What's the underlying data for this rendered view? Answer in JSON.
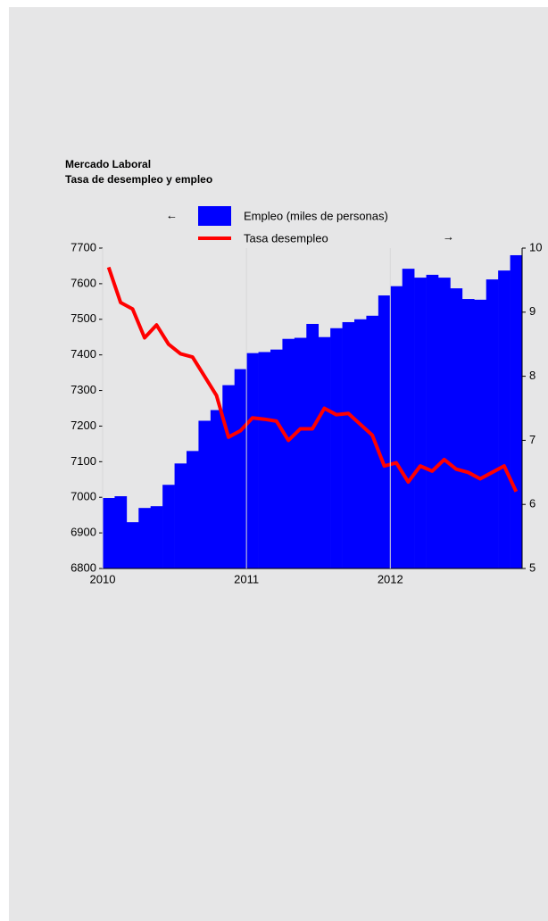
{
  "chart_data": {
    "type": "combo",
    "title": "Mercado Laboral",
    "subtitle": "Tasa de desempleo y empleo",
    "annotations": [
      "←",
      "→"
    ],
    "categories": [
      "2010",
      null,
      null,
      null,
      null,
      null,
      null,
      null,
      null,
      null,
      null,
      null,
      "2011",
      null,
      null,
      null,
      null,
      null,
      null,
      null,
      null,
      null,
      null,
      null,
      "2012",
      null,
      null,
      null,
      null,
      null,
      null,
      null,
      null,
      null,
      null
    ],
    "series": [
      {
        "name": "Empleo (miles de personas)",
        "type": "bar",
        "color": "#0000ff",
        "values": [
          6998,
          7003,
          6930,
          6970,
          6975,
          7035,
          7095,
          7130,
          7215,
          7245,
          7315,
          7360,
          7405,
          7408,
          7415,
          7445,
          7448,
          7487,
          7450,
          7475,
          7492,
          7500,
          7510,
          7567,
          7593,
          7642,
          7617,
          7625,
          7617,
          7587,
          7557,
          7555,
          7612,
          7637,
          7680
        ]
      },
      {
        "name": "Tasa desempleo",
        "type": "line",
        "axis": "y2",
        "color": "#ff0000",
        "values": [
          9.7,
          9.15,
          9.05,
          8.6,
          8.8,
          8.5,
          8.35,
          8.3,
          8.0,
          7.7,
          7.05,
          7.15,
          7.35,
          7.33,
          7.3,
          7.0,
          7.18,
          7.18,
          7.5,
          7.4,
          7.42,
          7.25,
          7.08,
          6.6,
          6.65,
          6.35,
          6.6,
          6.52,
          6.7,
          6.55,
          6.5,
          6.4,
          6.5,
          6.6,
          6.2
        ]
      }
    ],
    "ylim": [
      6800,
      7700
    ],
    "yticks": [
      6800,
      6900,
      7000,
      7100,
      7200,
      7300,
      7400,
      7500,
      7600,
      7700
    ],
    "y2lim": [
      5,
      10
    ],
    "y2ticks": [
      5,
      6,
      7,
      8,
      9,
      10
    ],
    "grid": false
  }
}
